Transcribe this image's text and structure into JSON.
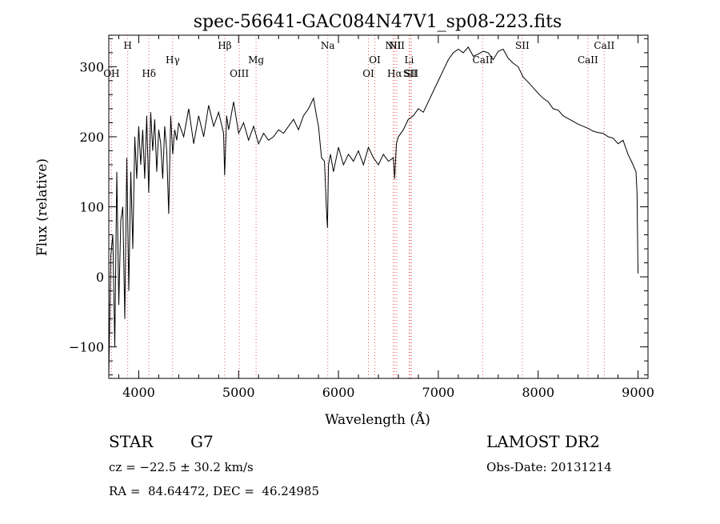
{
  "chart_data": {
    "type": "line",
    "title": "spec-56641-GAC084N47V1_sp08-223.fits",
    "xlabel": "Wavelength (Å)",
    "ylabel": "Flux (relative)",
    "xlim": [
      3700,
      9100
    ],
    "ylim": [
      -145,
      345
    ],
    "x_ticks": [
      4000,
      5000,
      6000,
      7000,
      8000,
      9000
    ],
    "y_ticks": [
      -100,
      0,
      100,
      200,
      300
    ],
    "grid": false,
    "line_color": "#000000",
    "marker_color": "#e06060",
    "line_markers": [
      {
        "label": "OH",
        "x": 3727,
        "row": 3
      },
      {
        "label": "H",
        "x": 3889,
        "row": 1
      },
      {
        "label": "Hδ",
        "x": 4102,
        "row": 3
      },
      {
        "label": "Hγ",
        "x": 4340,
        "row": 2
      },
      {
        "label": "Hβ",
        "x": 4861,
        "row": 1
      },
      {
        "label": "OIII",
        "x": 5007,
        "row": 3
      },
      {
        "label": "Mg",
        "x": 5175,
        "row": 2
      },
      {
        "label": "Na",
        "x": 5893,
        "row": 1
      },
      {
        "label": "OI",
        "x": 6300,
        "row": 3
      },
      {
        "label": "OI",
        "x": 6364,
        "row": 2
      },
      {
        "label": "NII",
        "x": 6548,
        "row": 1
      },
      {
        "label": "Hα",
        "x": 6563,
        "row": 3
      },
      {
        "label": "NII",
        "x": 6583,
        "row": 1
      },
      {
        "label": "Li",
        "x": 6708,
        "row": 2
      },
      {
        "label": "SII",
        "x": 6717,
        "row": 3
      },
      {
        "label": "SII",
        "x": 6731,
        "row": 3
      },
      {
        "label": "CaII",
        "x": 7445,
        "row": 2
      },
      {
        "label": "SII",
        "x": 7841,
        "row": 1
      },
      {
        "label": "CaII",
        "x": 8498,
        "row": 2
      },
      {
        "label": "CaII",
        "x": 8662,
        "row": 1
      }
    ],
    "series": [
      {
        "x": [
          3700,
          3720,
          3740,
          3760,
          3780,
          3800,
          3820,
          3840,
          3860,
          3880,
          3900,
          3920,
          3940,
          3960,
          3980,
          4000,
          4020,
          4040,
          4060,
          4080,
          4100,
          4120,
          4140,
          4160,
          4180,
          4200,
          4220,
          4240,
          4260,
          4280,
          4300,
          4320,
          4340,
          4360,
          4380,
          4400,
          4450,
          4500,
          4550,
          4600,
          4650,
          4700,
          4750,
          4800,
          4850,
          4860,
          4880,
          4900,
          4950,
          5000,
          5050,
          5100,
          5150,
          5200,
          5250,
          5300,
          5350,
          5400,
          5450,
          5500,
          5550,
          5600,
          5650,
          5700,
          5750,
          5780,
          5800,
          5830,
          5860,
          5880,
          5890,
          5900,
          5920,
          5950,
          6000,
          6050,
          6100,
          6150,
          6200,
          6250,
          6300,
          6350,
          6400,
          6450,
          6500,
          6550,
          6563,
          6580,
          6600,
          6650,
          6700,
          6750,
          6800,
          6850,
          6900,
          6950,
          7000,
          7050,
          7100,
          7150,
          7200,
          7250,
          7300,
          7350,
          7400,
          7450,
          7500,
          7550,
          7600,
          7650,
          7700,
          7750,
          7800,
          7850,
          7900,
          7950,
          8000,
          8050,
          8100,
          8150,
          8200,
          8250,
          8300,
          8350,
          8400,
          8450,
          8500,
          8550,
          8600,
          8650,
          8700,
          8750,
          8800,
          8850,
          8900,
          8950,
          8980,
          8990,
          9000
        ],
        "y": [
          -140,
          30,
          60,
          -100,
          150,
          -40,
          80,
          100,
          -60,
          170,
          -20,
          150,
          40,
          200,
          140,
          215,
          160,
          210,
          140,
          230,
          120,
          235,
          180,
          225,
          150,
          210,
          190,
          140,
          215,
          180,
          90,
          230,
          175,
          210,
          195,
          220,
          200,
          240,
          190,
          230,
          200,
          245,
          215,
          235,
          205,
          145,
          230,
          210,
          250,
          205,
          220,
          195,
          215,
          190,
          205,
          195,
          200,
          210,
          205,
          215,
          225,
          210,
          230,
          240,
          255,
          230,
          215,
          170,
          165,
          95,
          70,
          160,
          175,
          150,
          185,
          160,
          175,
          165,
          180,
          160,
          185,
          170,
          160,
          175,
          165,
          170,
          140,
          190,
          200,
          210,
          225,
          230,
          240,
          235,
          250,
          265,
          280,
          295,
          310,
          320,
          325,
          320,
          328,
          315,
          318,
          322,
          320,
          310,
          322,
          325,
          312,
          305,
          300,
          285,
          278,
          270,
          262,
          255,
          250,
          240,
          238,
          230,
          226,
          222,
          218,
          215,
          212,
          208,
          206,
          205,
          200,
          198,
          190,
          195,
          175,
          160,
          150,
          120,
          5
        ]
      }
    ]
  },
  "info": {
    "object_class": "STAR",
    "subclass": "G7",
    "cz": "cz = −22.5 ± 30.2 km/s",
    "coords": "RA =  84.64472, DEC =  46.24985",
    "survey": "LAMOST DR2",
    "obs_date": "Obs-Date: 20131214"
  }
}
